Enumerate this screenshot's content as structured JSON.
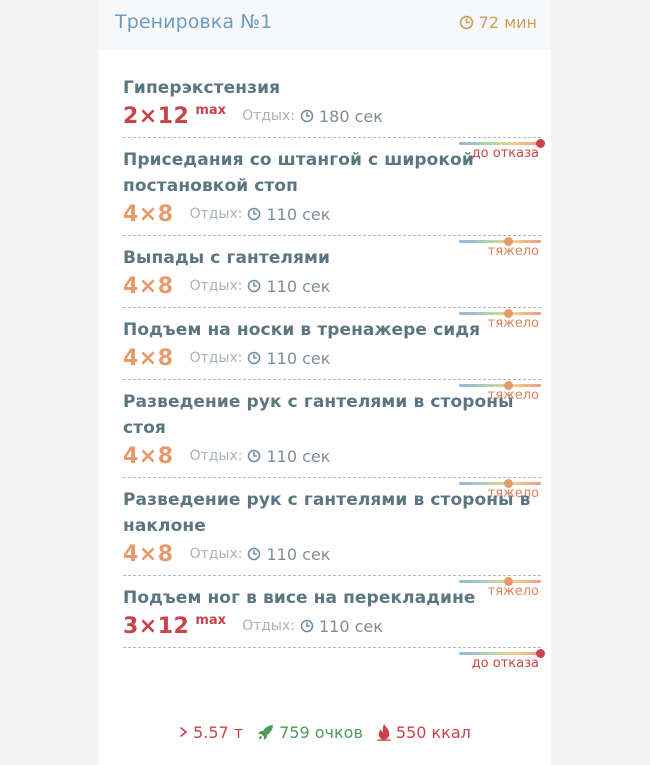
{
  "workout": {
    "title": "Тренировка №1",
    "duration": "72 мин"
  },
  "exercises": [
    {
      "name": "Гиперэкстензия",
      "sets": "2×12",
      "sup": "max",
      "rest_label": "Отдых:",
      "rest": "180 сек",
      "intensity": "до отказа",
      "level": "max"
    },
    {
      "name": "Приседания со штангой с широкой постановкой стоп",
      "sets": "4×8",
      "sup": "",
      "rest_label": "Отдых:",
      "rest": "110 сек",
      "intensity": "тяжело",
      "level": "heavy"
    },
    {
      "name": "Выпады с гантелями",
      "sets": "4×8",
      "sup": "",
      "rest_label": "Отдых:",
      "rest": "110 сек",
      "intensity": "тяжело",
      "level": "heavy"
    },
    {
      "name": "Подъем на носки в тренажере сидя",
      "sets": "4×8",
      "sup": "",
      "rest_label": "Отдых:",
      "rest": "110 сек",
      "intensity": "тяжело",
      "level": "heavy"
    },
    {
      "name": "Разведение рук с гантелями в стороны стоя",
      "sets": "4×8",
      "sup": "",
      "rest_label": "Отдых:",
      "rest": "110 сек",
      "intensity": "тяжело",
      "level": "heavy"
    },
    {
      "name": "Разведение рук с гантелями в стороны в наклоне",
      "sets": "4×8",
      "sup": "",
      "rest_label": "Отдых:",
      "rest": "110 сек",
      "intensity": "тяжело",
      "level": "heavy"
    },
    {
      "name": "Подъем ног в висе на перекладине",
      "sets": "3×12",
      "sup": "max",
      "rest_label": "Отдых:",
      "rest": "110 сек",
      "intensity": "до отказа",
      "level": "max"
    }
  ],
  "summary": {
    "tonnage": "5.57 т",
    "points": "759 очков",
    "kcal": "550 ккал"
  },
  "icons": {
    "clock": "clock-icon",
    "tonnage": "chevron-right-icon",
    "points": "rocket-icon",
    "kcal": "flame-icon"
  },
  "colors": {
    "max": "#c9434b",
    "heavy": "#e89a6c",
    "title": "#6d9dc0",
    "points": "#4f9a57"
  }
}
